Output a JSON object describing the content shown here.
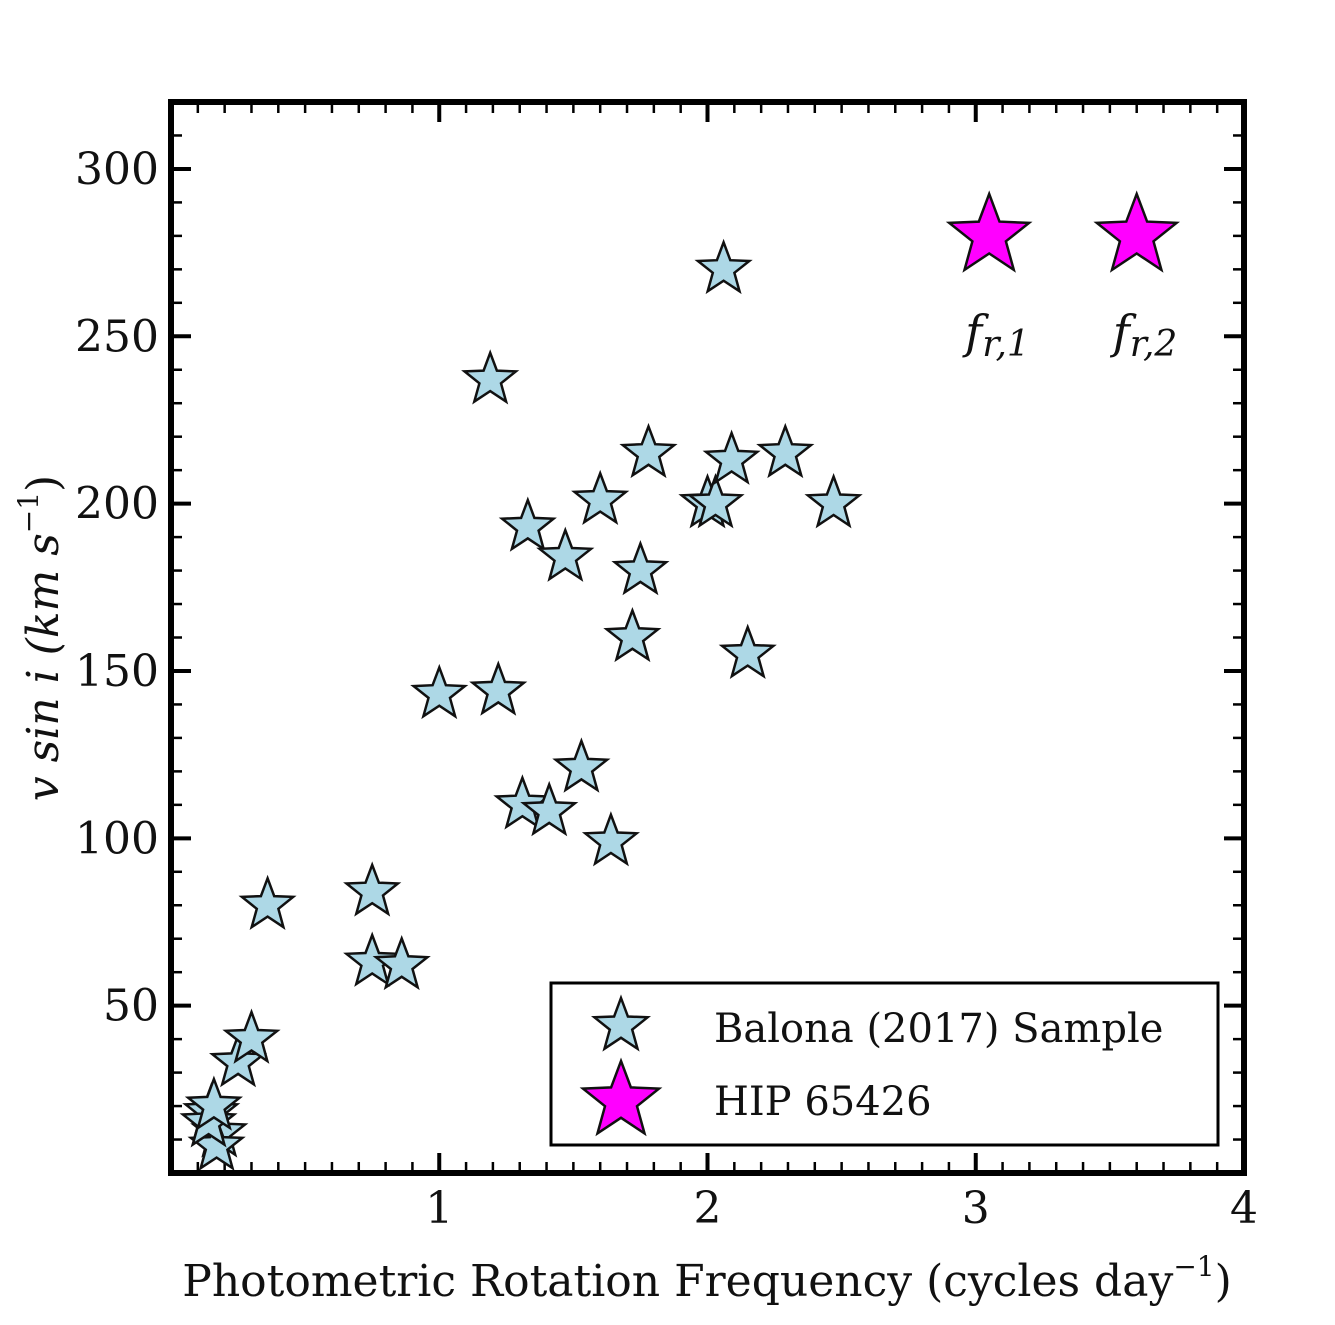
{
  "chart_data": {
    "type": "scatter",
    "title": "",
    "xlabel": "Photometric Rotation Frequency (cycles day",
    "xlabel_sup": "−1",
    "xlabel_close": ")",
    "ylabel": "v sin i (km s",
    "ylabel_sup": "−1",
    "ylabel_close": ")",
    "xlim": [
      0,
      4
    ],
    "ylim": [
      0,
      320
    ],
    "xticks": [
      1,
      2,
      3,
      4
    ],
    "yticks": [
      50,
      100,
      150,
      200,
      250,
      300
    ],
    "series": [
      {
        "name": "Balona (2017) Sample",
        "color": "#add8e6",
        "marker": "star",
        "points": [
          [
            0.15,
            18
          ],
          [
            0.18,
            12
          ],
          [
            0.17,
            8
          ],
          [
            0.14,
            15
          ],
          [
            0.16,
            20
          ],
          [
            0.25,
            33
          ],
          [
            0.3,
            40
          ],
          [
            0.36,
            80
          ],
          [
            0.75,
            84
          ],
          [
            0.75,
            63
          ],
          [
            0.86,
            62
          ],
          [
            1.0,
            143
          ],
          [
            1.19,
            237
          ],
          [
            1.22,
            144
          ],
          [
            1.31,
            110
          ],
          [
            1.33,
            193
          ],
          [
            1.41,
            108
          ],
          [
            1.47,
            184
          ],
          [
            1.53,
            121
          ],
          [
            1.6,
            201
          ],
          [
            1.64,
            99
          ],
          [
            1.72,
            160
          ],
          [
            1.75,
            180
          ],
          [
            1.78,
            215
          ],
          [
            2.0,
            200
          ],
          [
            2.03,
            200
          ],
          [
            2.06,
            270
          ],
          [
            2.09,
            213
          ],
          [
            2.15,
            155
          ],
          [
            2.29,
            215
          ],
          [
            2.47,
            200
          ]
        ]
      },
      {
        "name": "HIP 65426",
        "color": "#ff00ff",
        "marker": "star",
        "points": [
          [
            3.05,
            280
          ],
          [
            3.6,
            280
          ]
        ]
      }
    ],
    "annotations": [
      {
        "base": "f",
        "sub": "r,1",
        "x": 3.05,
        "y": 280
      },
      {
        "base": "f",
        "sub": "r,2",
        "x": 3.6,
        "y": 280
      }
    ],
    "legend": {
      "position": "lower-right",
      "entries": [
        "Balona (2017) Sample",
        "HIP 65426"
      ]
    },
    "grid": false
  }
}
